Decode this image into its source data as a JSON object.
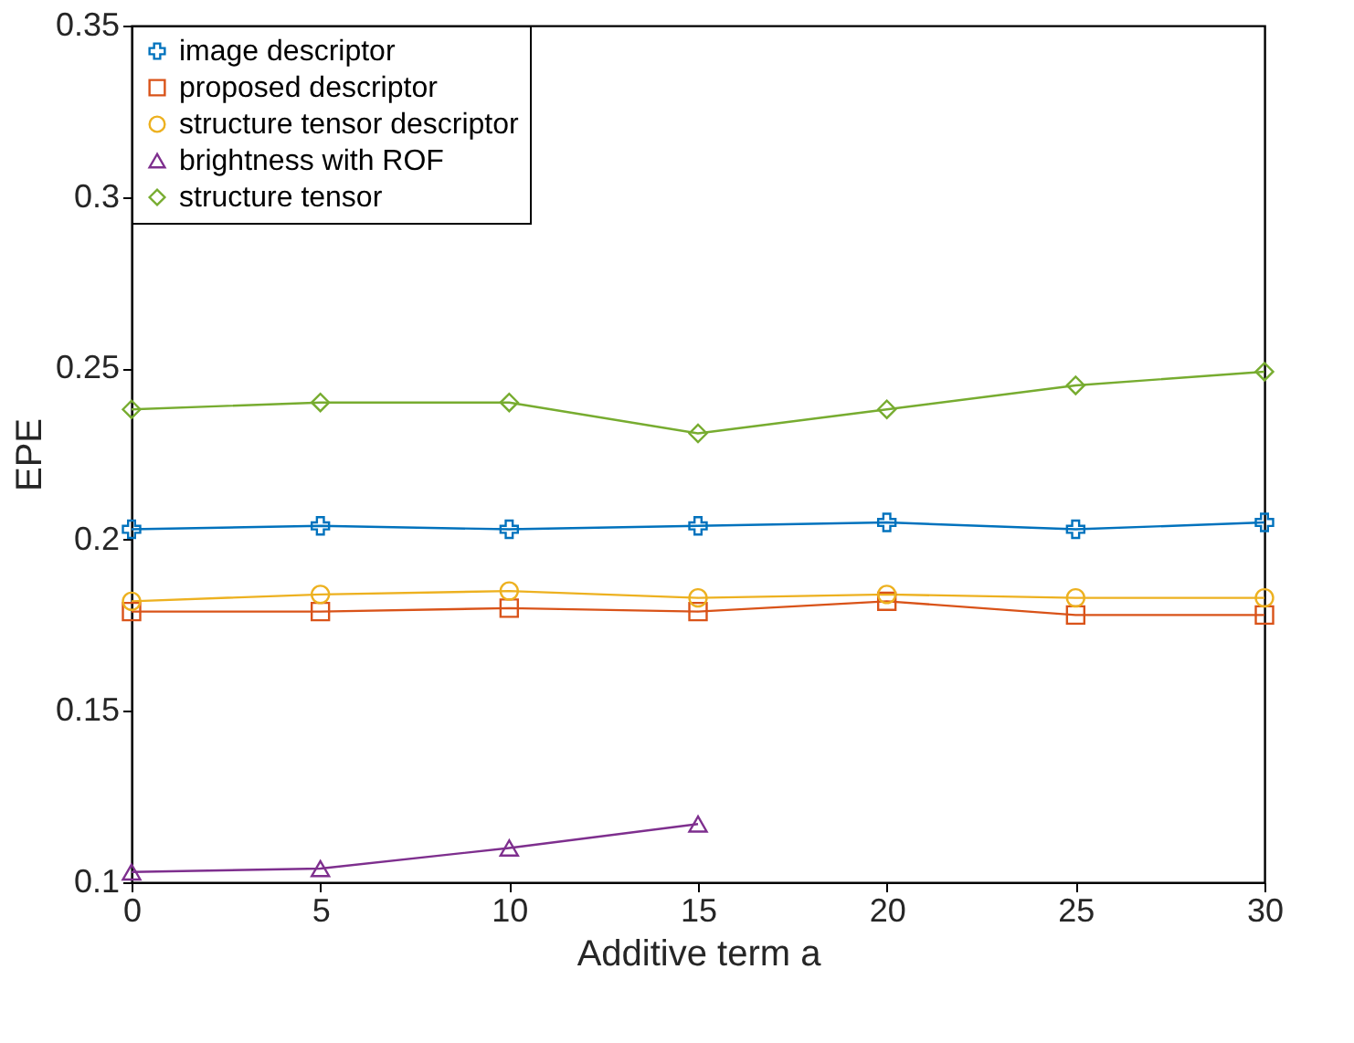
{
  "chart_data": {
    "type": "line",
    "xlabel": "Additive term a",
    "ylabel": "EPE",
    "x": [
      0,
      5,
      10,
      15,
      20,
      25,
      30
    ],
    "xlim": [
      0,
      30
    ],
    "xticks": [
      0,
      5,
      10,
      15,
      20,
      25,
      30
    ],
    "ylim": [
      0.1,
      0.35
    ],
    "yticks": [
      0.1,
      0.15,
      0.2,
      0.25,
      0.3,
      0.35
    ],
    "grid": false,
    "legend": "top left",
    "line_style": "solid",
    "series": [
      {
        "name": "image descriptor",
        "color": "#0072bd",
        "marker": "cross",
        "values": [
          0.203,
          0.204,
          0.203,
          0.204,
          0.205,
          0.203,
          0.205
        ]
      },
      {
        "name": "proposed descriptor",
        "color": "#d95319",
        "marker": "square",
        "values": [
          0.179,
          0.179,
          0.18,
          0.179,
          0.182,
          0.178,
          0.178
        ]
      },
      {
        "name": "structure tensor descriptor",
        "color": "#edb120",
        "marker": "circle",
        "values": [
          0.182,
          0.184,
          0.185,
          0.183,
          0.184,
          0.183,
          0.183
        ]
      },
      {
        "name": "brightness with ROF",
        "color": "#7e2f8e",
        "marker": "triangle",
        "values": [
          0.103,
          0.104,
          0.11,
          0.117,
          null,
          null,
          null
        ]
      },
      {
        "name": "structure tensor",
        "color": "#77ac30",
        "marker": "diamond",
        "values": [
          0.238,
          0.24,
          0.24,
          0.231,
          0.238,
          0.245,
          0.249
        ]
      }
    ]
  }
}
